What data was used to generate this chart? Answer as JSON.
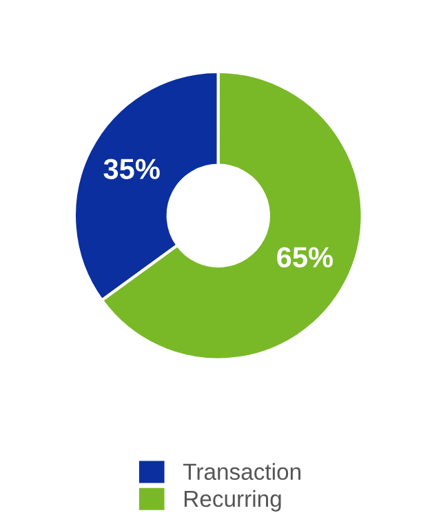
{
  "chart_data": {
    "type": "donut",
    "categories": [
      "Transaction",
      "Recurring"
    ],
    "values": [
      35,
      65
    ],
    "colors": [
      "#0b2f9f",
      "#79b928"
    ],
    "value_labels": [
      "35%",
      "65%"
    ],
    "legend": "bottom"
  }
}
